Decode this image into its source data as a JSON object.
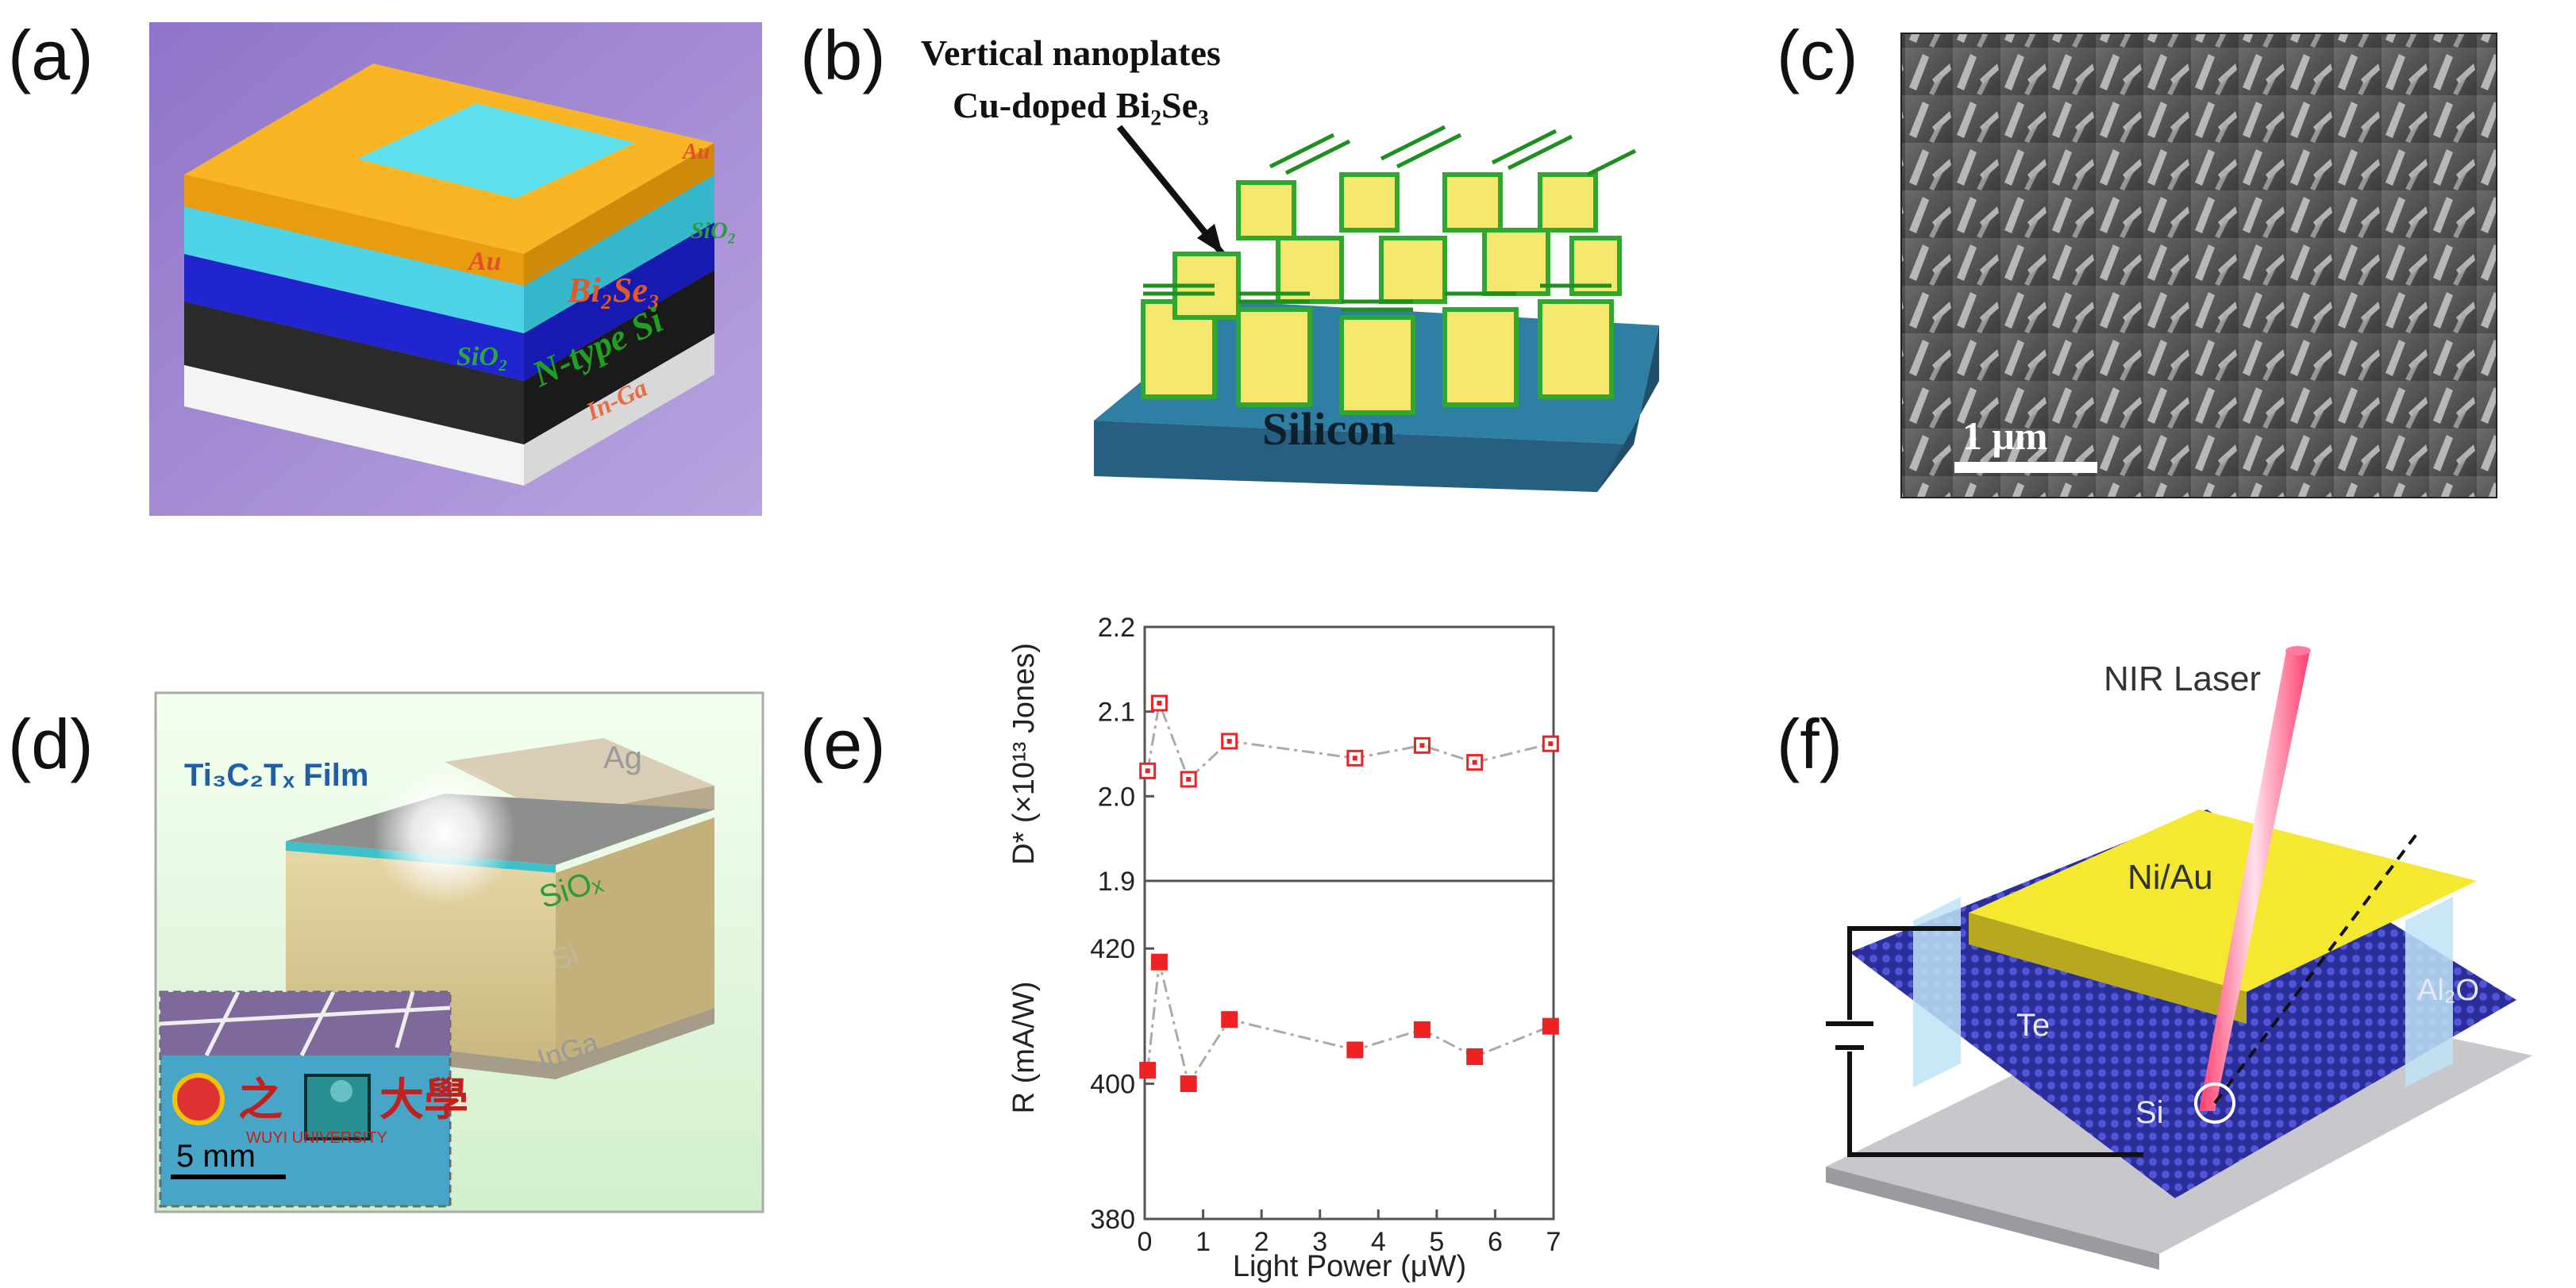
{
  "panel_labels": [
    "(a)",
    "(b)",
    "(c)",
    "(d)",
    "(e)",
    "(f)"
  ],
  "panel_a": {
    "layers": {
      "au_left": "Au",
      "au_right": "Au",
      "bi2se3": "Bi₂Se₃",
      "sio2_left": "SiO₂",
      "sio2_right": "SiO₂",
      "ntype_si": "N-type Si",
      "in_ga": "In-Ga"
    },
    "colors": {
      "background": "#9a82cf",
      "au": "#f8b422",
      "bi2se3": "#5fd9ea",
      "sio2": "#1f23c9",
      "si": "#2b2b2b",
      "inga": "#f0f0f0"
    }
  },
  "panel_b": {
    "title_line1": "Vertical nanoplates",
    "title_line2": "Cu-doped Bi₂Se₃",
    "substrate_label": "Silicon",
    "colors": {
      "substrate": "#2f6f92",
      "plate_edge": "#2ea82e",
      "plate_face": "#f2e77a"
    }
  },
  "panel_c": {
    "scale_bar_label": "1 μm"
  },
  "panel_d": {
    "film_label": "Ti₃C₂Tₓ Film",
    "ag_label": "Ag",
    "siox_label": "SiOₓ",
    "si_label": "Si",
    "inga_label": "InGa",
    "inset_scale": "5 mm",
    "inset_text_left": "之",
    "inset_text_right": "大學",
    "inset_university": "WUYI UNIVERSITY"
  },
  "panel_f": {
    "laser_label": "NIR Laser",
    "electrode_label": "Ni/Au",
    "te_label": "Te",
    "si_label": "Si",
    "al2o3_label": "Al₂O"
  },
  "chart_data": {
    "type": "scatter",
    "xlabel": "Light Power (μW)",
    "xlim": [
      0,
      7
    ],
    "xticks": [
      0,
      1,
      2,
      3,
      4,
      5,
      6,
      7
    ],
    "x": [
      0.05,
      0.25,
      0.75,
      1.45,
      3.6,
      4.75,
      5.65,
      6.95
    ],
    "series": [
      {
        "name": "D*",
        "ylabel": "D* (×10¹³ Jones)",
        "ylim": [
          1.9,
          2.2
        ],
        "yticks": [
          1.9,
          2.0,
          2.1,
          2.2
        ],
        "values": [
          2.03,
          2.11,
          2.02,
          2.065,
          2.045,
          2.06,
          2.04,
          2.062
        ],
        "marker": "open-square",
        "color": "#ee2222"
      },
      {
        "name": "R",
        "ylabel": "R (mA/W)",
        "ylim": [
          380,
          430
        ],
        "yticks": [
          380,
          400,
          420
        ],
        "values": [
          402,
          418,
          400,
          409.5,
          405,
          408,
          404,
          408.5
        ],
        "marker": "filled-square",
        "color": "#ee2222"
      }
    ]
  }
}
